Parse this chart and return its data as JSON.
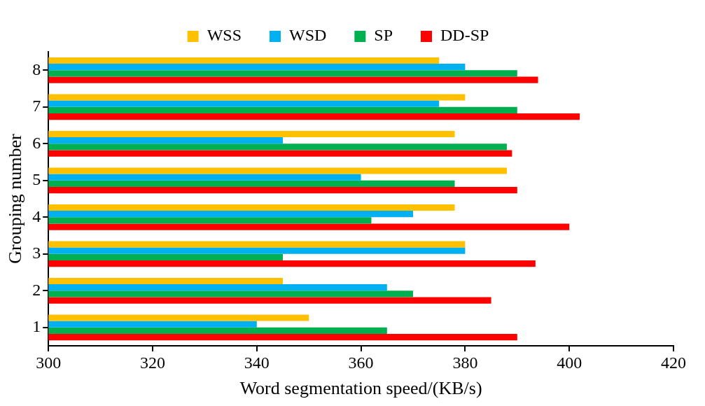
{
  "chart_data": {
    "type": "bar",
    "orientation": "horizontal",
    "xlabel": "Word segmentation speed/(KB/s)",
    "ylabel": "Grouping number",
    "categories": [
      "8",
      "7",
      "6",
      "5",
      "4",
      "3",
      "2",
      "1"
    ],
    "series": [
      {
        "name": "WSS",
        "color": "#ffc000",
        "values": [
          375,
          380,
          378,
          388,
          378,
          380,
          345,
          350
        ]
      },
      {
        "name": "WSD",
        "color": "#00b0f0",
        "values": [
          380,
          375,
          345,
          360,
          370,
          380,
          365,
          340
        ]
      },
      {
        "name": "SP",
        "color": "#00b050",
        "values": [
          390,
          390,
          388,
          378,
          362,
          345,
          370,
          365
        ]
      },
      {
        "name": "DD-SP",
        "color": "#ff0000",
        "values": [
          394,
          402,
          389,
          390,
          400,
          393.5,
          385,
          390
        ]
      }
    ],
    "xlim": [
      300,
      420
    ],
    "xticks": [
      300,
      320,
      340,
      360,
      380,
      400,
      420
    ],
    "grid": false,
    "legend": "top",
    "marker": "square"
  }
}
